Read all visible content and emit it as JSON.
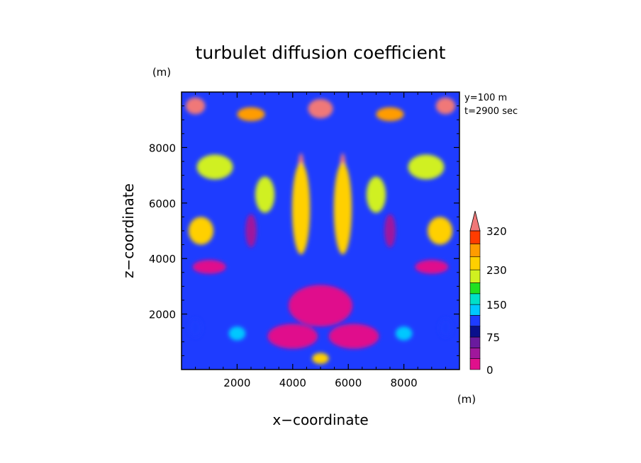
{
  "chart_data": {
    "type": "heatmap",
    "title": "turbulet diffusion coefficient",
    "xlabel": "x−coordinate",
    "ylabel": "z−coordinate",
    "x_unit": "(m)",
    "y_unit": "(m)",
    "xlim": [
      0,
      10000
    ],
    "ylim": [
      0,
      10000
    ],
    "x_ticks": [
      2000,
      4000,
      6000,
      8000
    ],
    "y_ticks": [
      2000,
      4000,
      6000,
      8000
    ],
    "annotation": [
      "y=100 m",
      "t=2900 sec"
    ],
    "colorbar": {
      "levels": [
        0,
        25,
        50,
        75,
        100,
        125,
        150,
        175,
        200,
        230,
        260,
        290,
        320
      ],
      "labels": [
        "0",
        "75",
        "150",
        "230",
        "320"
      ],
      "label_values": [
        0,
        75,
        150,
        230,
        320
      ],
      "colors": [
        "#e0108c",
        "#a0179c",
        "#6a1a9e",
        "#0a108c",
        "#1e3cff",
        "#00c8ff",
        "#00e0c8",
        "#20e020",
        "#d0f020",
        "#ffd000",
        "#ff9c00",
        "#ff3c00",
        "#e00000"
      ],
      "over_color": "#f07878"
    },
    "features": [
      {
        "x": 4300,
        "z": 6400,
        "w": 300,
        "h": 2800,
        "value": 330
      },
      {
        "x": 5800,
        "z": 6400,
        "w": 300,
        "h": 2800,
        "value": 330
      },
      {
        "x": 4300,
        "z": 5800,
        "w": 650,
        "h": 3300,
        "value": 250
      },
      {
        "x": 5800,
        "z": 5800,
        "w": 650,
        "h": 3300,
        "value": 250
      },
      {
        "x": 5000,
        "z": 9400,
        "w": 900,
        "h": 700,
        "value": 330
      },
      {
        "x": 500,
        "z": 9500,
        "w": 700,
        "h": 600,
        "value": 330
      },
      {
        "x": 9500,
        "z": 9500,
        "w": 700,
        "h": 600,
        "value": 330
      },
      {
        "x": 2500,
        "z": 9200,
        "w": 1000,
        "h": 500,
        "value": 280
      },
      {
        "x": 7500,
        "z": 9200,
        "w": 1000,
        "h": 500,
        "value": 280
      },
      {
        "x": 1200,
        "z": 7300,
        "w": 1300,
        "h": 900,
        "value": 220
      },
      {
        "x": 8800,
        "z": 7300,
        "w": 1300,
        "h": 900,
        "value": 220
      },
      {
        "x": 700,
        "z": 5000,
        "w": 900,
        "h": 1000,
        "value": 240
      },
      {
        "x": 9300,
        "z": 5000,
        "w": 900,
        "h": 1000,
        "value": 240
      },
      {
        "x": 3000,
        "z": 6300,
        "w": 700,
        "h": 1300,
        "value": 210
      },
      {
        "x": 7000,
        "z": 6300,
        "w": 700,
        "h": 1300,
        "value": 210
      },
      {
        "x": 5000,
        "z": 2300,
        "w": 2300,
        "h": 1500,
        "value": 10
      },
      {
        "x": 4000,
        "z": 1200,
        "w": 1800,
        "h": 900,
        "value": 15
      },
      {
        "x": 6200,
        "z": 1200,
        "w": 1800,
        "h": 900,
        "value": 15
      },
      {
        "x": 1000,
        "z": 3700,
        "w": 1200,
        "h": 500,
        "value": 20
      },
      {
        "x": 9000,
        "z": 3700,
        "w": 1200,
        "h": 500,
        "value": 20
      },
      {
        "x": 2500,
        "z": 5000,
        "w": 400,
        "h": 1200,
        "value": 40
      },
      {
        "x": 7500,
        "z": 5000,
        "w": 400,
        "h": 1200,
        "value": 40
      },
      {
        "x": 5000,
        "z": 400,
        "w": 600,
        "h": 400,
        "value": 230
      },
      {
        "x": 500,
        "z": 1500,
        "w": 500,
        "h": 700,
        "value": 120
      },
      {
        "x": 9500,
        "z": 1500,
        "w": 500,
        "h": 700,
        "value": 120
      },
      {
        "x": 2000,
        "z": 1300,
        "w": 600,
        "h": 500,
        "value": 140
      },
      {
        "x": 8000,
        "z": 1300,
        "w": 600,
        "h": 500,
        "value": 140
      }
    ]
  }
}
